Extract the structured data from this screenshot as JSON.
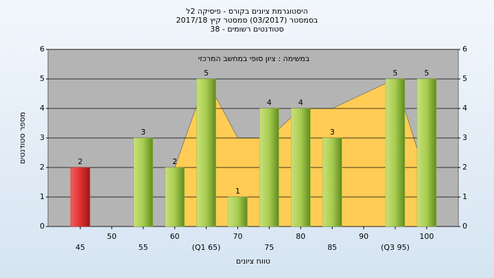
{
  "chart_data": {
    "type": "bar",
    "title": "היסטוגרמת ציונים בקורס - פיסיקה 2ל",
    "subtitle": "בסמסטר (03/2017) סמסטר קיץ 2017/18",
    "subtitle2": "סטודנטים רשומים - 38",
    "annotation": "במשימה : ציון סופי במחשב המרכזי",
    "y_label": "מספר סטודנטים",
    "x_label": "טווח ציונים",
    "categories": [
      "45",
      "50",
      "55",
      "60",
      "(Q1 65)",
      "70",
      "75",
      "80",
      "85",
      "90",
      "(Q3 95)",
      "100"
    ],
    "values": [
      2,
      0,
      3,
      2,
      5,
      1,
      4,
      4,
      3,
      0,
      5,
      5
    ],
    "colors": [
      "#d8262b",
      "#8fbc3a",
      "#8fbc3a",
      "#8fbc3a",
      "#8fbc3a",
      "#8fbc3a",
      "#8fbc3a",
      "#8fbc3a",
      "#8fbc3a",
      "#8fbc3a",
      "#8fbc3a",
      "#8fbc3a"
    ],
    "area": {
      "color": "#ffcc55",
      "values": [
        null,
        null,
        null,
        2,
        5,
        3,
        3,
        4,
        4,
        4.5,
        5,
        1.6
      ]
    },
    "ylim": [
      0,
      6
    ],
    "yticks": [
      0,
      1,
      2,
      3,
      4,
      5,
      6
    ],
    "y2lim": [
      0,
      6
    ],
    "y2ticks": [
      0,
      1,
      2,
      3,
      4,
      5,
      6
    ],
    "grid": true
  }
}
